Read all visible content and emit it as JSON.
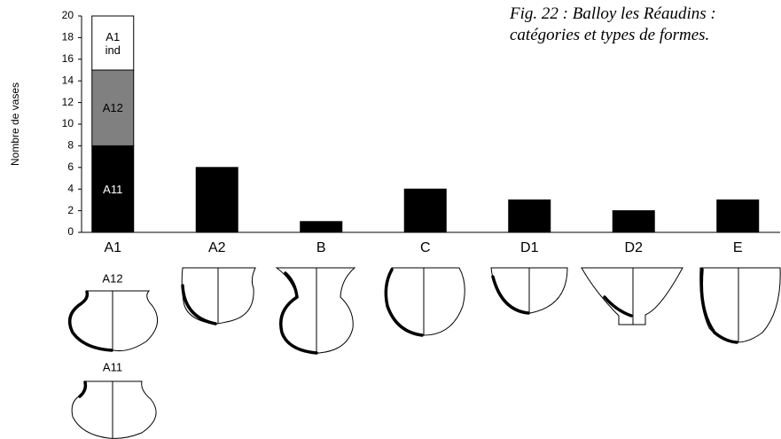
{
  "chart_data": {
    "type": "bar",
    "title": "Fig. 22 : Balloy les Réaudins : catégories et types de formes.",
    "y_label": "Nombre de vases",
    "categories": [
      "A1",
      "A2",
      "B",
      "C",
      "D1",
      "D2",
      "E"
    ],
    "series": [
      {
        "name": "A11",
        "color": "#000000",
        "values": [
          8,
          6,
          1,
          4,
          3,
          2,
          3
        ]
      },
      {
        "name": "A12",
        "color": "#808080",
        "values": [
          7,
          null,
          null,
          null,
          null,
          null,
          null
        ]
      },
      {
        "name": "A1 ind",
        "color": "#ffffff",
        "values": [
          5,
          null,
          null,
          null,
          null,
          null,
          null
        ]
      }
    ],
    "ylim": [
      0,
      20
    ],
    "yticks": [
      0,
      2,
      4,
      6,
      8,
      10,
      12,
      14,
      16,
      18,
      20
    ],
    "grid": false,
    "stacked": true
  },
  "drawings": {
    "labels": [
      "A12",
      "A11"
    ]
  }
}
